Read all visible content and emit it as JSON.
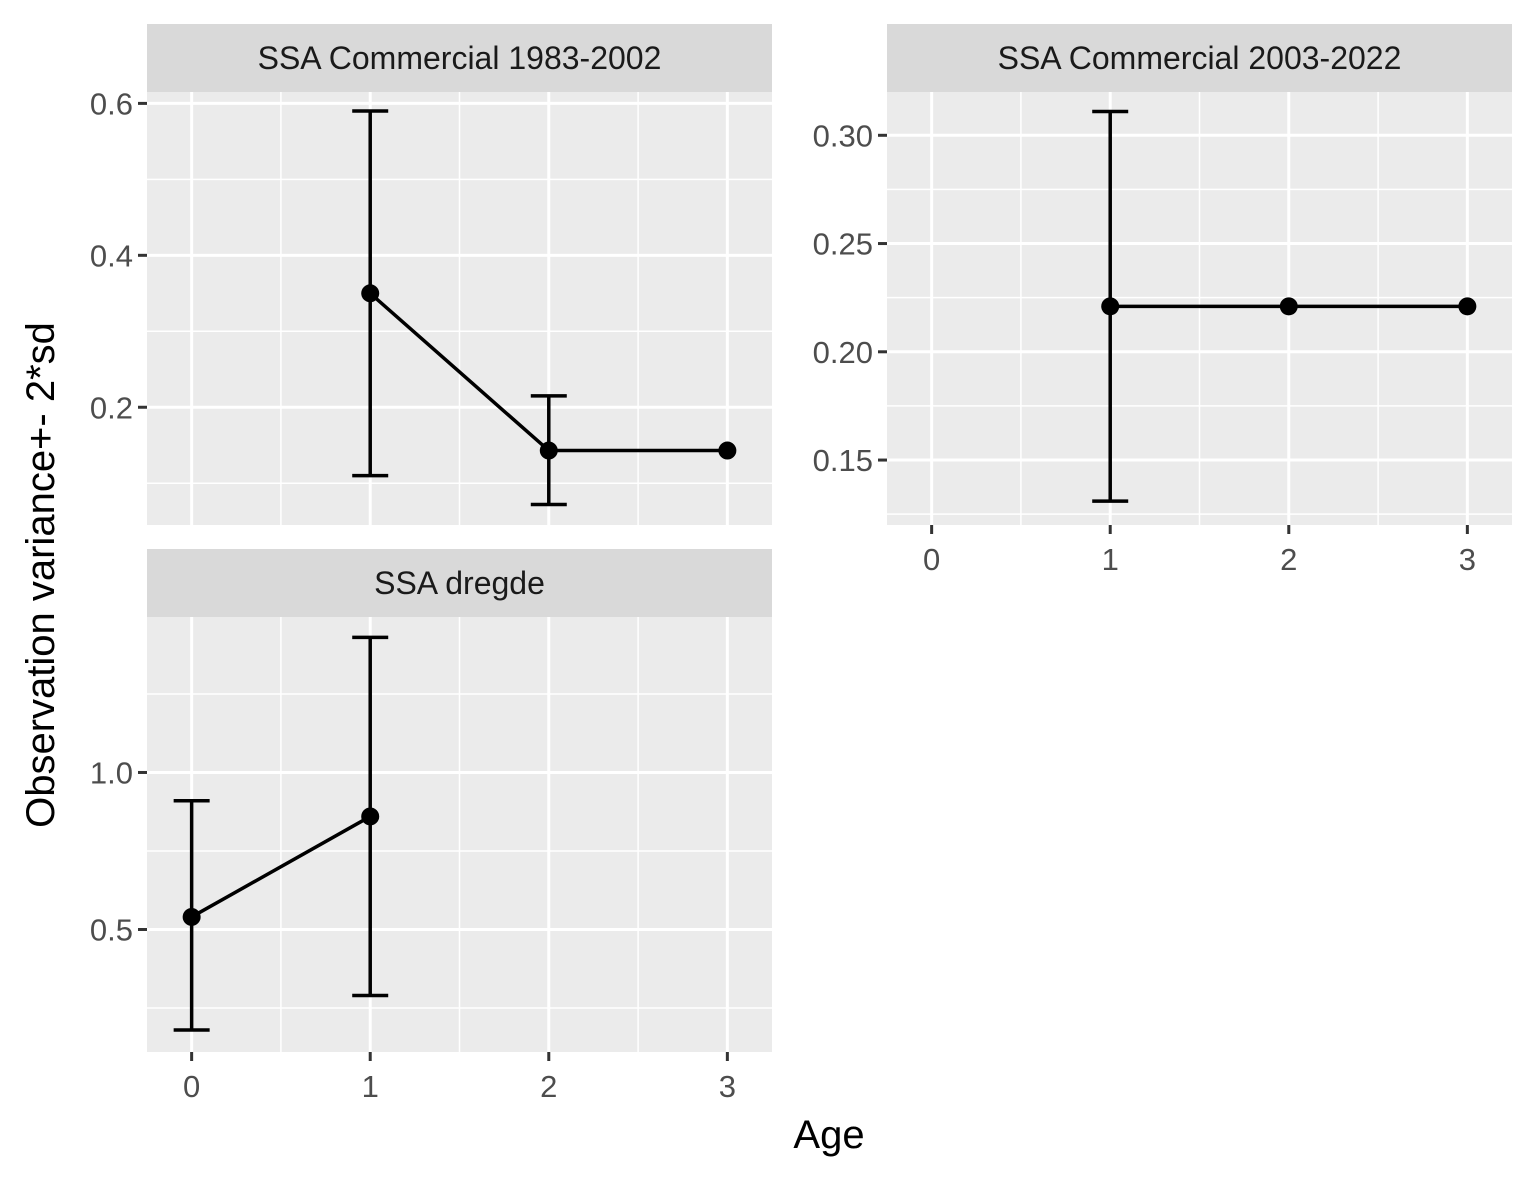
{
  "chart_data": {
    "type": "line",
    "xlabel": "Age",
    "ylabel": "Observation variance+- 2*sd",
    "x_ticks": [
      "0",
      "1",
      "2",
      "3"
    ],
    "xlim": [
      -0.25,
      3.25
    ],
    "panels": [
      {
        "title": "SSA Commercial 1983-2002",
        "ylim": [
          0.045,
          0.615
        ],
        "y_ticks": [
          0.2,
          0.4,
          0.6
        ],
        "y_tick_labels": [
          "0.2",
          "0.4",
          "0.6"
        ],
        "y_minor": [
          0.1,
          0.3,
          0.5
        ],
        "show_x_axis": false,
        "points": [
          {
            "x": 1,
            "y": 0.35,
            "lo": 0.11,
            "hi": 0.59
          },
          {
            "x": 2,
            "y": 0.143,
            "lo": 0.072,
            "hi": 0.215
          },
          {
            "x": 3,
            "y": 0.143
          }
        ]
      },
      {
        "title": "SSA Commercial 2003-2022",
        "ylim": [
          0.12,
          0.32
        ],
        "y_ticks": [
          0.15,
          0.2,
          0.25,
          0.3
        ],
        "y_tick_labels": [
          "0.15",
          "0.20",
          "0.25",
          "0.30"
        ],
        "y_minor": [
          0.125,
          0.175,
          0.225,
          0.275
        ],
        "show_x_axis": true,
        "points": [
          {
            "x": 1,
            "y": 0.221,
            "lo": 0.131,
            "hi": 0.311
          },
          {
            "x": 2,
            "y": 0.221
          },
          {
            "x": 3,
            "y": 0.221
          }
        ]
      },
      {
        "title": "SSA dregde",
        "ylim": [
          0.11,
          1.495
        ],
        "y_ticks": [
          0.5,
          1.0
        ],
        "y_tick_labels": [
          "0.5",
          "1.0"
        ],
        "y_minor": [
          0.25,
          0.75,
          1.25
        ],
        "show_x_axis": true,
        "points": [
          {
            "x": 0,
            "y": 0.54,
            "lo": 0.18,
            "hi": 0.91
          },
          {
            "x": 1,
            "y": 0.86,
            "lo": 0.29,
            "hi": 1.43
          }
        ]
      }
    ]
  }
}
